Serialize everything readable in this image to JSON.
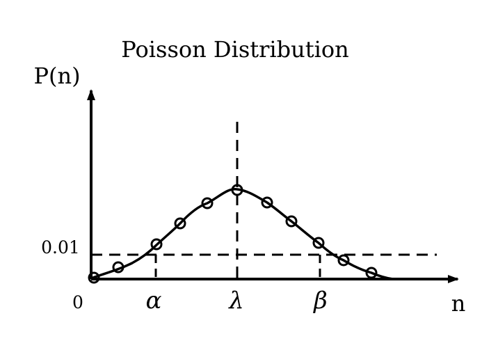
{
  "figure": {
    "title": "Poisson Distribution",
    "y_axis_label": "P(n)",
    "x_axis_label": "n",
    "origin_label": "0",
    "threshold_label": "0.01",
    "alpha_label": "α",
    "lambda_label": "λ",
    "beta_label": "β"
  },
  "style": {
    "stroke_color": "#000000",
    "background_color": "#ffffff"
  }
}
